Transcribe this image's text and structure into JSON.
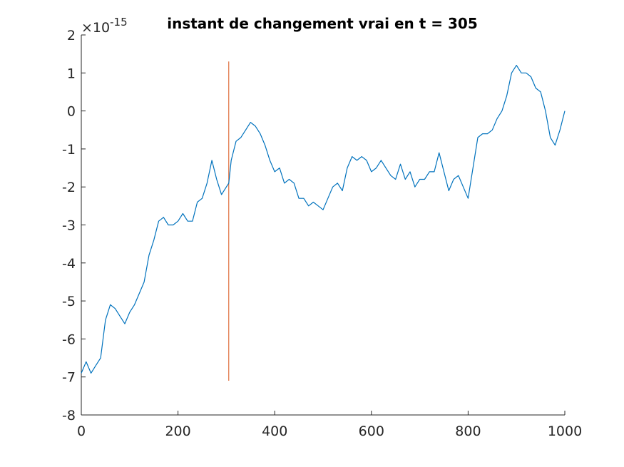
{
  "chart_data": {
    "type": "line",
    "title": "instant de changement vrai en t = 305",
    "xlabel": "",
    "ylabel": "",
    "xlim": [
      0,
      1000
    ],
    "ylim": [
      -8,
      2
    ],
    "x_ticks": [
      0,
      200,
      400,
      600,
      800,
      1000
    ],
    "x_tick_labels": [
      "0",
      "200",
      "400",
      "600",
      "800",
      "1000"
    ],
    "y_ticks": [
      -8,
      -7,
      -6,
      -5,
      -4,
      -3,
      -2,
      -1,
      0,
      1,
      2
    ],
    "y_tick_labels": [
      "-8",
      "-7",
      "-6",
      "-5",
      "-4",
      "-3",
      "-2",
      "-1",
      "0",
      "1",
      "2"
    ],
    "y_exponent": {
      "base": "×10",
      "power": "-15"
    },
    "grid": false,
    "box": "left-bottom-axes",
    "colors": {
      "series": "#0072BD",
      "marker": "#D95319",
      "axis": "#262626"
    },
    "changepoint": {
      "x": 305,
      "y_from": -7.1,
      "y_to": 1.3
    },
    "series": [
      {
        "x": [
          0,
          10,
          20,
          30,
          40,
          50,
          60,
          70,
          80,
          90,
          100,
          110,
          120,
          130,
          140,
          150,
          160,
          170,
          180,
          190,
          200,
          210,
          220,
          230,
          240,
          250,
          260,
          270,
          280,
          290,
          300,
          305,
          310,
          320,
          330,
          340,
          350,
          360,
          370,
          380,
          390,
          400,
          410,
          420,
          430,
          440,
          450,
          460,
          470,
          480,
          490,
          500,
          510,
          520,
          530,
          540,
          550,
          560,
          570,
          580,
          590,
          600,
          610,
          620,
          630,
          640,
          650,
          660,
          670,
          680,
          690,
          700,
          710,
          720,
          730,
          740,
          750,
          760,
          770,
          780,
          790,
          800,
          810,
          820,
          830,
          840,
          850,
          860,
          870,
          880,
          890,
          900,
          910,
          920,
          930,
          940,
          950,
          960,
          970,
          980,
          990,
          1000
        ],
        "values": [
          -6.9,
          -6.6,
          -6.9,
          -6.7,
          -6.5,
          -5.5,
          -5.1,
          -5.2,
          -5.4,
          -5.6,
          -5.3,
          -5.1,
          -4.8,
          -4.5,
          -3.8,
          -3.4,
          -2.9,
          -2.8,
          -3.0,
          -3.0,
          -2.9,
          -2.7,
          -2.9,
          -2.9,
          -2.4,
          -2.3,
          -1.9,
          -1.3,
          -1.8,
          -2.2,
          -2.0,
          -1.9,
          -1.3,
          -0.8,
          -0.7,
          -0.5,
          -0.3,
          -0.4,
          -0.6,
          -0.9,
          -1.3,
          -1.6,
          -1.5,
          -1.9,
          -1.8,
          -1.9,
          -2.3,
          -2.3,
          -2.5,
          -2.4,
          -2.5,
          -2.6,
          -2.3,
          -2.0,
          -1.9,
          -2.1,
          -1.5,
          -1.2,
          -1.3,
          -1.2,
          -1.3,
          -1.6,
          -1.5,
          -1.3,
          -1.5,
          -1.7,
          -1.8,
          -1.4,
          -1.8,
          -1.6,
          -2.0,
          -1.8,
          -1.8,
          -1.6,
          -1.6,
          -1.1,
          -1.6,
          -2.1,
          -1.8,
          -1.7,
          -2.0,
          -2.3,
          -1.5,
          -0.7,
          -0.6,
          -0.6,
          -0.5,
          -0.2,
          0.0,
          0.4,
          1.0,
          1.2,
          1.0,
          1.0,
          0.9,
          0.6,
          0.5,
          0.0,
          -0.7,
          -0.9,
          -0.5,
          0.0
        ]
      }
    ]
  }
}
